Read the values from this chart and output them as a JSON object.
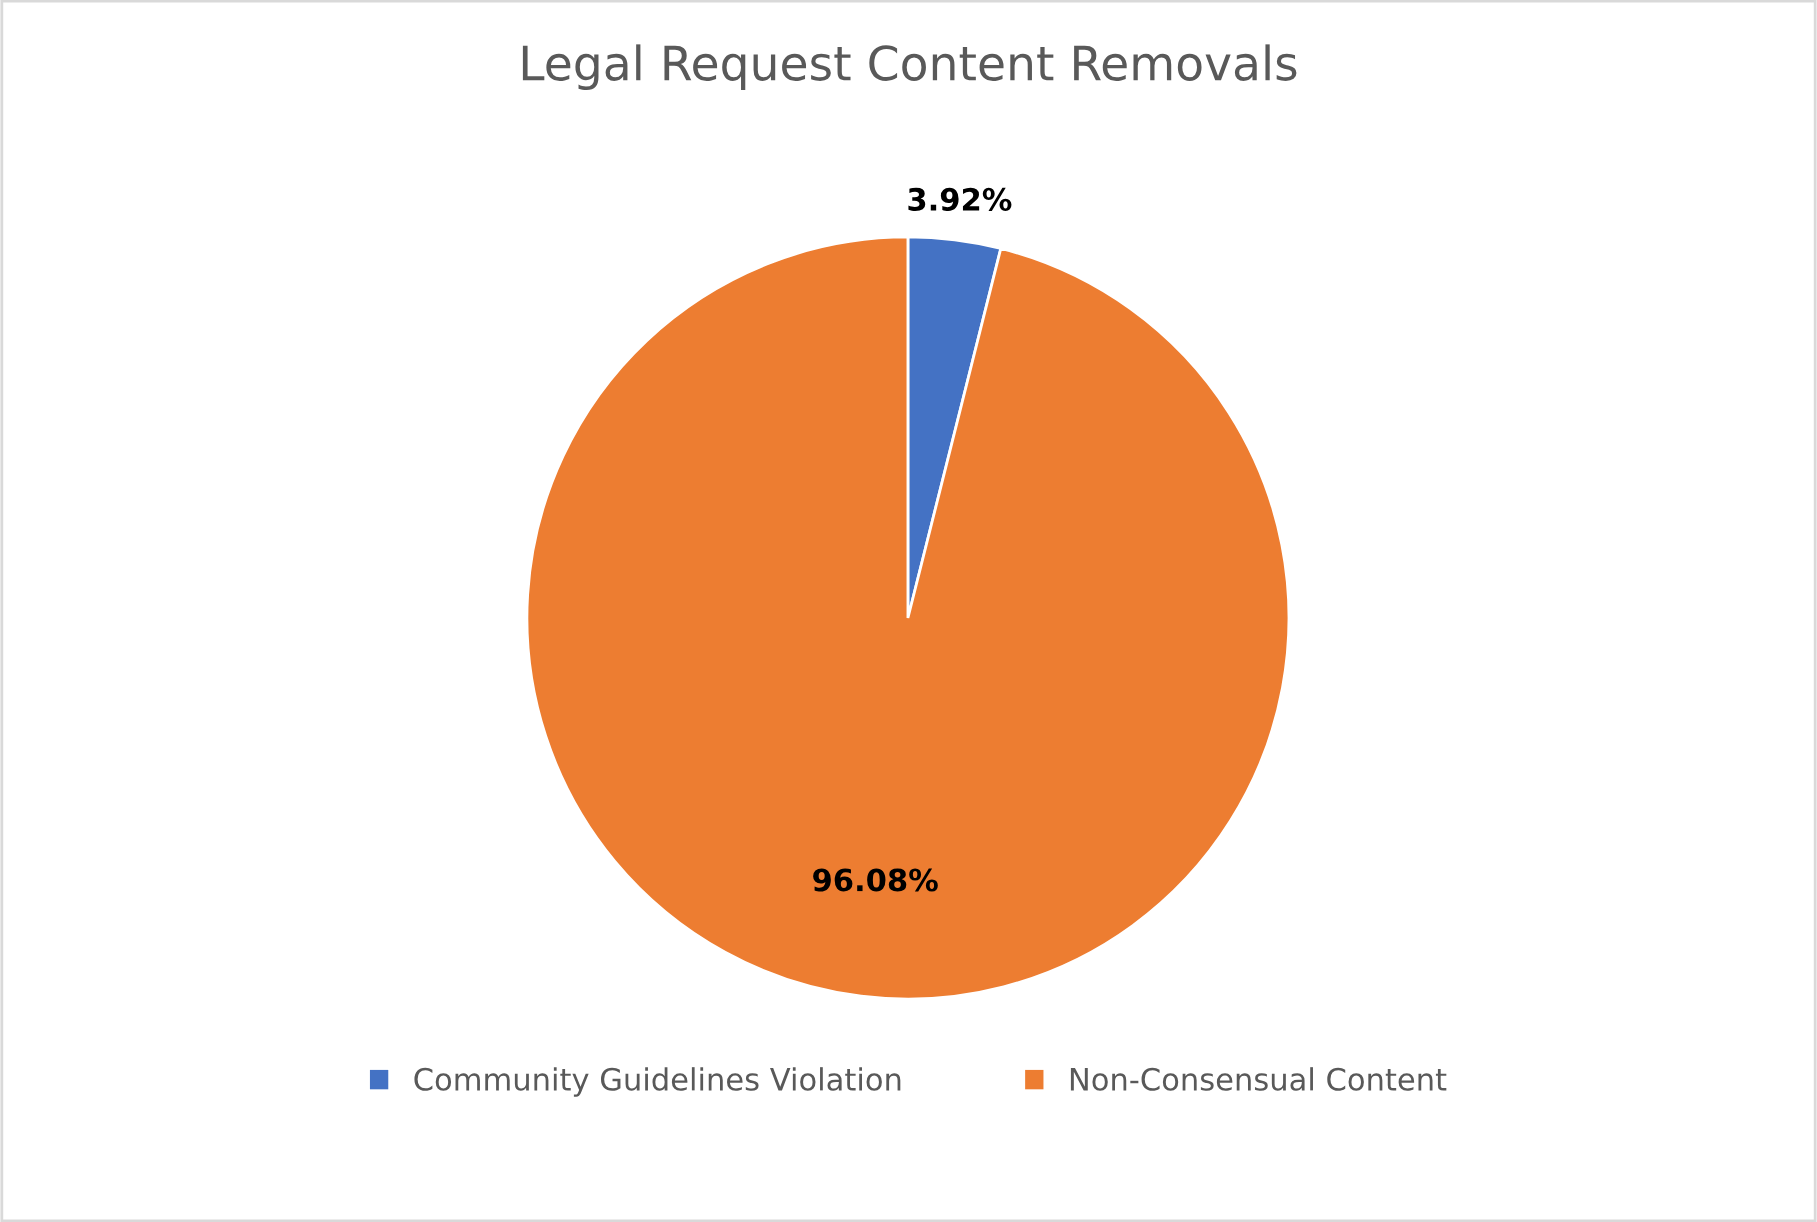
{
  "chart_data": {
    "type": "pie",
    "title": "Legal Request Content Removals",
    "categories": [
      "Community Guidelines Violation",
      "Non-Consensual Content"
    ],
    "values": [
      3.92,
      96.08
    ],
    "colors": [
      "#4472c4",
      "#ed7d31"
    ],
    "value_labels": [
      "3.92%",
      "96.08%"
    ],
    "legend": "bottom"
  }
}
